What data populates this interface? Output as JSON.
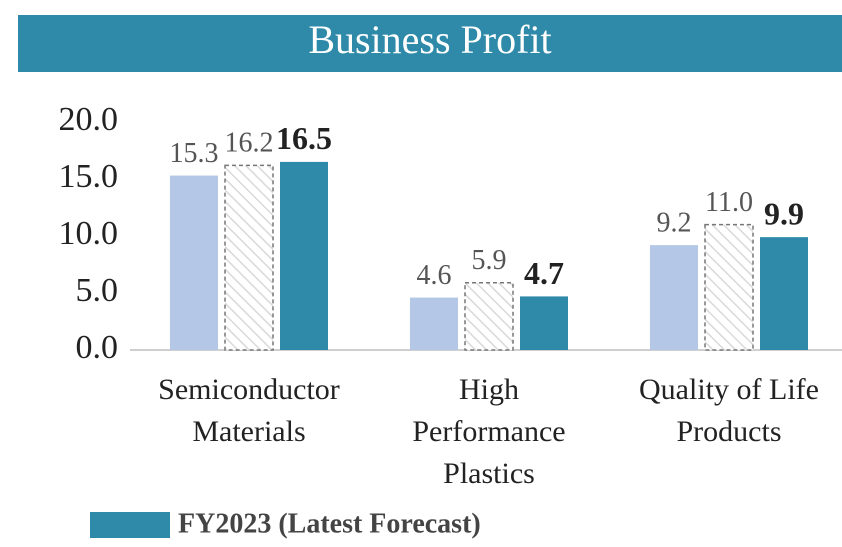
{
  "chart_data": {
    "type": "bar",
    "title": "Business Profit",
    "categories": [
      "Semiconductor\nMaterials",
      "High\nPerformance\nPlastics",
      "Quality of Life\nProducts"
    ],
    "series": [
      {
        "color": "#b4c7e7",
        "values": [
          15.3,
          4.6,
          9.2
        ],
        "value_labels": [
          "15.3",
          "4.6",
          "9.2"
        ]
      },
      {
        "color": "#ffffff",
        "fill_style": "hatch",
        "values": [
          16.2,
          5.9,
          11.0
        ],
        "value_labels": [
          "16.2",
          "5.9",
          "11.0"
        ]
      },
      {
        "name": "FY2023 (Latest Forecast)",
        "color": "#2e8aa8",
        "values": [
          16.5,
          4.7,
          9.9
        ],
        "value_labels": [
          "16.5",
          "4.7",
          "9.9"
        ],
        "bold_labels": true
      }
    ],
    "ylim": [
      0,
      20
    ],
    "yticks": [
      {
        "value": 0,
        "label": "0.0"
      },
      {
        "value": 5,
        "label": "5.0"
      },
      {
        "value": 10,
        "label": "10.0"
      },
      {
        "value": 15,
        "label": "15.0"
      },
      {
        "value": 20,
        "label": "20.0"
      }
    ],
    "grid": false
  }
}
